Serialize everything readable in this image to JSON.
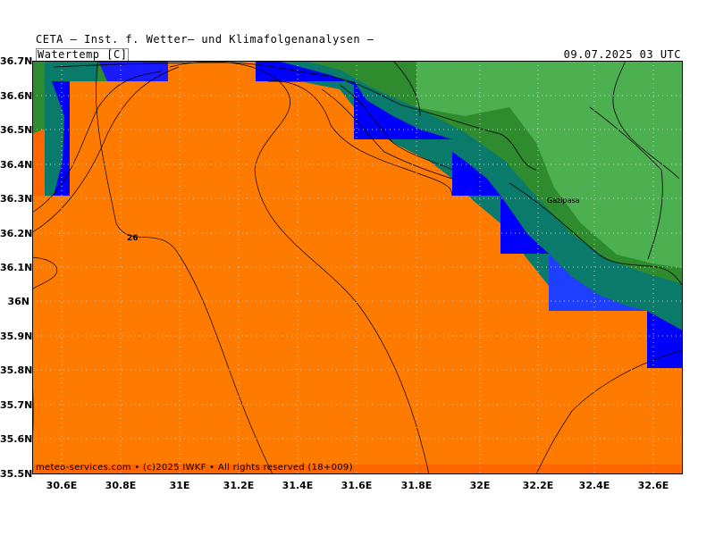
{
  "header": {
    "title": "CETA — Inst. f. Wetter— und Klimafolgenanalysen —",
    "variable": "Watertemp [C]",
    "datetime": "09.07.2025 03 UTC"
  },
  "axes": {
    "lat_labels": [
      "36.7N",
      "36.6N",
      "36.5N",
      "36.4N",
      "36.3N",
      "36.2N",
      "36.1N",
      "36N",
      "35.9N",
      "35.8N",
      "35.7N",
      "35.6N",
      "35.5N"
    ],
    "lon_labels": [
      "30.6E",
      "30.8E",
      "31E",
      "31.2E",
      "31.4E",
      "31.6E",
      "31.8E",
      "32E",
      "32.2E",
      "32.4E",
      "32.6E"
    ]
  },
  "map": {
    "place_label": "Gazipasa",
    "contour_label": "26",
    "credit": "meteo-services.com • (c)2025 IWKF • All rights reserved (18+009)"
  },
  "colors": {
    "sea_warm": "#ff6600",
    "sea_band_orange": "#ff7b00",
    "cold_water": "#0000ff",
    "teal": "#0a7a6a",
    "land_dark": "#2e8b2e",
    "land_light": "#4caf50",
    "grid": "#cccccc"
  }
}
